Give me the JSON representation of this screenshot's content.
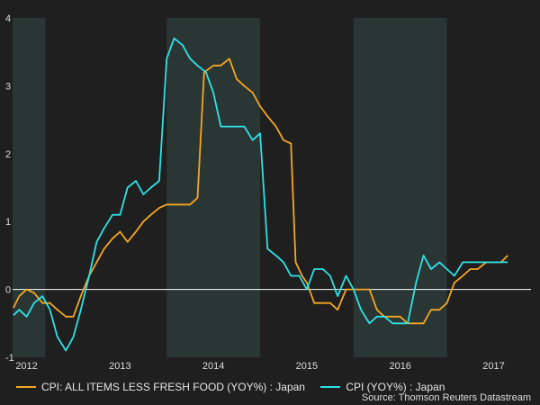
{
  "chart_data": {
    "type": "line",
    "title": "",
    "xlabel": "",
    "ylabel": "",
    "ylim": [
      -1,
      4
    ],
    "yticks": [
      -1,
      0,
      1,
      2,
      3,
      4
    ],
    "xlim": [
      2011.85,
      2017.4
    ],
    "xticks": [
      {
        "label": "2012",
        "x": 2012.0
      },
      {
        "label": "2013",
        "x": 2013.0
      },
      {
        "label": "2014",
        "x": 2014.0
      },
      {
        "label": "2015",
        "x": 2015.0
      },
      {
        "label": "2016",
        "x": 2016.0
      },
      {
        "label": "2017",
        "x": 2017.0
      }
    ],
    "shaded_periods": [
      [
        2011.85,
        2012.2
      ],
      [
        2013.5,
        2014.5
      ],
      [
        2015.5,
        2016.5
      ]
    ],
    "series": [
      {
        "name": "CPI: ALL ITEMS LESS FRESH FOOD (YOY%) : Japan",
        "color": "#f5a623",
        "points": [
          [
            2011.86,
            -0.27
          ],
          [
            2011.92,
            -0.1
          ],
          [
            2012.0,
            0.0
          ],
          [
            2012.08,
            -0.05
          ],
          [
            2012.17,
            -0.2
          ],
          [
            2012.25,
            -0.2
          ],
          [
            2012.33,
            -0.3
          ],
          [
            2012.42,
            -0.4
          ],
          [
            2012.5,
            -0.4
          ],
          [
            2012.58,
            -0.1
          ],
          [
            2012.67,
            0.2
          ],
          [
            2012.75,
            0.4
          ],
          [
            2012.83,
            0.6
          ],
          [
            2012.92,
            0.75
          ],
          [
            2013.0,
            0.85
          ],
          [
            2013.08,
            0.7
          ],
          [
            2013.17,
            0.85
          ],
          [
            2013.25,
            1.0
          ],
          [
            2013.33,
            1.1
          ],
          [
            2013.42,
            1.2
          ],
          [
            2013.5,
            1.25
          ],
          [
            2013.58,
            1.25
          ],
          [
            2013.67,
            1.25
          ],
          [
            2013.75,
            1.25
          ],
          [
            2013.83,
            1.35
          ],
          [
            2013.9,
            3.2
          ],
          [
            2014.0,
            3.3
          ],
          [
            2014.08,
            3.3
          ],
          [
            2014.17,
            3.4
          ],
          [
            2014.25,
            3.1
          ],
          [
            2014.33,
            3.0
          ],
          [
            2014.42,
            2.9
          ],
          [
            2014.5,
            2.7
          ],
          [
            2014.58,
            2.55
          ],
          [
            2014.67,
            2.4
          ],
          [
            2014.75,
            2.2
          ],
          [
            2014.83,
            2.15
          ],
          [
            2014.88,
            0.4
          ],
          [
            2014.95,
            0.2
          ],
          [
            2015.0,
            0.1
          ],
          [
            2015.08,
            -0.2
          ],
          [
            2015.17,
            -0.2
          ],
          [
            2015.25,
            -0.2
          ],
          [
            2015.33,
            -0.3
          ],
          [
            2015.42,
            0.0
          ],
          [
            2015.5,
            0.0
          ],
          [
            2015.58,
            0.0
          ],
          [
            2015.67,
            0.0
          ],
          [
            2015.75,
            -0.3
          ],
          [
            2015.83,
            -0.4
          ],
          [
            2015.92,
            -0.4
          ],
          [
            2016.0,
            -0.4
          ],
          [
            2016.08,
            -0.5
          ],
          [
            2016.17,
            -0.5
          ],
          [
            2016.25,
            -0.5
          ],
          [
            2016.33,
            -0.3
          ],
          [
            2016.42,
            -0.3
          ],
          [
            2016.5,
            -0.2
          ],
          [
            2016.58,
            0.1
          ],
          [
            2016.67,
            0.2
          ],
          [
            2016.75,
            0.3
          ],
          [
            2016.83,
            0.3
          ],
          [
            2016.92,
            0.4
          ],
          [
            2017.0,
            0.4
          ],
          [
            2017.08,
            0.4
          ],
          [
            2017.15,
            0.5
          ]
        ]
      },
      {
        "name": "CPI (YOY%) : Japan",
        "color": "#2de2e6",
        "points": [
          [
            2011.86,
            -0.38
          ],
          [
            2011.92,
            -0.3
          ],
          [
            2012.0,
            -0.4
          ],
          [
            2012.08,
            -0.2
          ],
          [
            2012.17,
            -0.1
          ],
          [
            2012.25,
            -0.3
          ],
          [
            2012.33,
            -0.7
          ],
          [
            2012.42,
            -0.9
          ],
          [
            2012.5,
            -0.7
          ],
          [
            2012.58,
            -0.3
          ],
          [
            2012.67,
            0.2
          ],
          [
            2012.75,
            0.7
          ],
          [
            2012.83,
            0.9
          ],
          [
            2012.92,
            1.1
          ],
          [
            2013.0,
            1.1
          ],
          [
            2013.08,
            1.5
          ],
          [
            2013.17,
            1.6
          ],
          [
            2013.25,
            1.4
          ],
          [
            2013.33,
            1.5
          ],
          [
            2013.42,
            1.6
          ],
          [
            2013.5,
            3.4
          ],
          [
            2013.58,
            3.7
          ],
          [
            2013.67,
            3.6
          ],
          [
            2013.75,
            3.4
          ],
          [
            2013.83,
            3.3
          ],
          [
            2013.92,
            3.2
          ],
          [
            2014.0,
            2.9
          ],
          [
            2014.08,
            2.4
          ],
          [
            2014.17,
            2.4
          ],
          [
            2014.25,
            2.4
          ],
          [
            2014.33,
            2.4
          ],
          [
            2014.42,
            2.2
          ],
          [
            2014.5,
            2.3
          ],
          [
            2014.58,
            0.6
          ],
          [
            2014.67,
            0.5
          ],
          [
            2014.75,
            0.4
          ],
          [
            2014.83,
            0.2
          ],
          [
            2014.92,
            0.2
          ],
          [
            2015.0,
            0.0
          ],
          [
            2015.08,
            0.3
          ],
          [
            2015.17,
            0.3
          ],
          [
            2015.25,
            0.2
          ],
          [
            2015.33,
            -0.1
          ],
          [
            2015.42,
            0.2
          ],
          [
            2015.5,
            0.0
          ],
          [
            2015.58,
            -0.3
          ],
          [
            2015.67,
            -0.5
          ],
          [
            2015.75,
            -0.4
          ],
          [
            2015.83,
            -0.4
          ],
          [
            2015.92,
            -0.5
          ],
          [
            2016.0,
            -0.5
          ],
          [
            2016.08,
            -0.5
          ],
          [
            2016.17,
            0.1
          ],
          [
            2016.25,
            0.5
          ],
          [
            2016.33,
            0.3
          ],
          [
            2016.42,
            0.4
          ],
          [
            2016.5,
            0.3
          ],
          [
            2016.58,
            0.2
          ],
          [
            2016.67,
            0.4
          ],
          [
            2016.75,
            0.4
          ],
          [
            2016.83,
            0.4
          ],
          [
            2016.92,
            0.4
          ],
          [
            2017.0,
            0.4
          ],
          [
            2017.08,
            0.4
          ],
          [
            2017.15,
            0.4
          ]
        ]
      }
    ],
    "legend_position": "bottom-left",
    "source": "Source: Thomson Reuters Datastream",
    "background": "#1f1f1f",
    "shade_color": "#2a3634",
    "zero_line_color": "#ffffff"
  }
}
